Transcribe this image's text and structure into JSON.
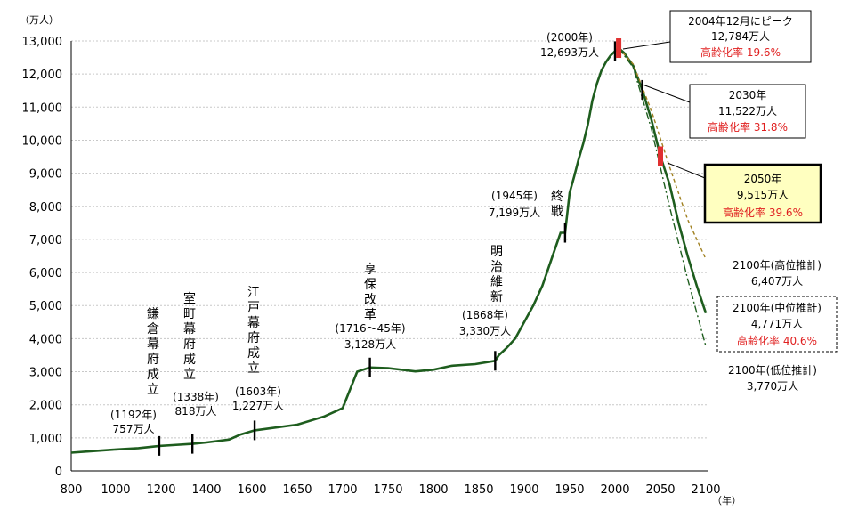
{
  "chart_data": {
    "type": "line",
    "xlabel_unit": "（年）",
    "ylabel_unit": "（万人）",
    "xlim": [
      800,
      2100
    ],
    "ylim": [
      0,
      13000
    ],
    "x_ticks": [
      800,
      1000,
      1200,
      1400,
      1600,
      1650,
      1700,
      1750,
      1800,
      1850,
      1900,
      1950,
      2000,
      2050,
      2100
    ],
    "y_tick_labels": [
      "0",
      "1,000",
      "2,000",
      "3,000",
      "4,000",
      "5,000",
      "6,000",
      "7,000",
      "8,000",
      "9,000",
      "10,000",
      "11,000",
      "12,000",
      "13,000"
    ],
    "y_ticks": [
      0,
      1000,
      2000,
      3000,
      4000,
      5000,
      6000,
      7000,
      8000,
      9000,
      10000,
      11000,
      12000,
      13000
    ],
    "x_tick_labels": [
      "800",
      "1000",
      "1200",
      "1400",
      "1600",
      "1650",
      "1700",
      "1750",
      "1800",
      "1850",
      "1900",
      "1950",
      "2000",
      "2050",
      "2100"
    ],
    "series": [
      {
        "x": [
          800,
          900,
          1000,
          1100,
          1192,
          1250,
          1338,
          1400,
          1500,
          1550,
          1603,
          1650,
          1680,
          1700,
          1716,
          1730,
          1750,
          1780,
          1800,
          1820,
          1846,
          1868,
          1872,
          1880,
          1890,
          1900,
          1910,
          1920,
          1930,
          1940,
          1945,
          1950,
          1955,
          1960,
          1965,
          1970,
          1975,
          1980,
          1985,
          1990,
          1995,
          2000,
          2004,
          2010,
          2020,
          2030,
          2040,
          2050,
          2060,
          2070,
          2080,
          2090,
          2100
        ],
        "y": [
          551,
          600,
          650,
          690,
          757,
          780,
          818,
          860,
          950,
          1100,
          1227,
          1400,
          1650,
          1900,
          3000,
          3128,
          3110,
          3010,
          3060,
          3180,
          3230,
          3330,
          3500,
          3700,
          4000,
          4500,
          5000,
          5600,
          6400,
          7200,
          7199,
          8411,
          8900,
          9430,
          9900,
          10467,
          11194,
          11706,
          12105,
          12361,
          12557,
          12693,
          12784,
          12640,
          12250,
          11522,
          10630,
          9515,
          8674,
          7500,
          6500,
          5600,
          4771
        ],
        "color": "#1e5d1e"
      },
      {
        "x": [
          2004,
          2020,
          2040,
          2060,
          2080,
          2100
        ],
        "y": [
          12784,
          12300,
          10900,
          9200,
          7600,
          6407
        ],
        "color": "#a08020",
        "style": "dashed"
      },
      {
        "x": [
          2004,
          2020,
          2040,
          2060,
          2080,
          2100
        ],
        "y": [
          12784,
          12200,
          10350,
          8000,
          5800,
          3770
        ],
        "color": "#1e5d1e",
        "style": "dashdot"
      }
    ],
    "markers": [
      {
        "x": 1192,
        "y": 757
      },
      {
        "x": 1338,
        "y": 818
      },
      {
        "x": 1603,
        "y": 1227
      },
      {
        "x": 1730,
        "y": 3128
      },
      {
        "x": 1868,
        "y": 3330
      },
      {
        "x": 1945,
        "y": 7199
      },
      {
        "x": 2000,
        "y": 12693
      },
      {
        "x": 2030,
        "y": 11522
      }
    ],
    "red_markers": [
      {
        "x": 2004,
        "y": 12784
      },
      {
        "x": 2050,
        "y": 9515
      }
    ]
  },
  "annotations": {
    "kamakura": {
      "vertical": "鎌倉幕府成立",
      "year": "(1192年)",
      "value": "757万人"
    },
    "muromachi": {
      "vertical": "室町幕府成立",
      "year": "(1338年)",
      "value": "818万人"
    },
    "edo": {
      "vertical": "江戸幕府成立",
      "year": "(1603年)",
      "value": "1,227万人"
    },
    "kyoho": {
      "vertical": "享保改革",
      "year": "(1716～45年)",
      "value": "3,128万人"
    },
    "meiji": {
      "vertical": "明治維新",
      "year": "(1868年)",
      "value": "3,330万人"
    },
    "shusen": {
      "vertical": "終戦",
      "year": "(1945年)",
      "value": "7,199万人"
    },
    "y2000": {
      "year": "(2000年)",
      "value": "12,693万人"
    },
    "peak": {
      "line1": "2004年12月にピーク",
      "line2": "12,784万人",
      "line3": "高齢化率 19.6%"
    },
    "y2030": {
      "line1": "2030年",
      "line2": "11,522万人",
      "line3": "高齢化率 31.8%"
    },
    "y2050": {
      "line1": "2050年",
      "line2": "9,515万人",
      "line3": "高齢化率 39.6%"
    },
    "high": {
      "line1": "2100年(高位推計)",
      "line2": "6,407万人"
    },
    "mid": {
      "line1": "2100年(中位推計)",
      "line2": "4,771万人",
      "line3": "高齢化率 40.6%"
    },
    "low": {
      "line1": "2100年(低位推計)",
      "line2": "3,770万人"
    }
  }
}
